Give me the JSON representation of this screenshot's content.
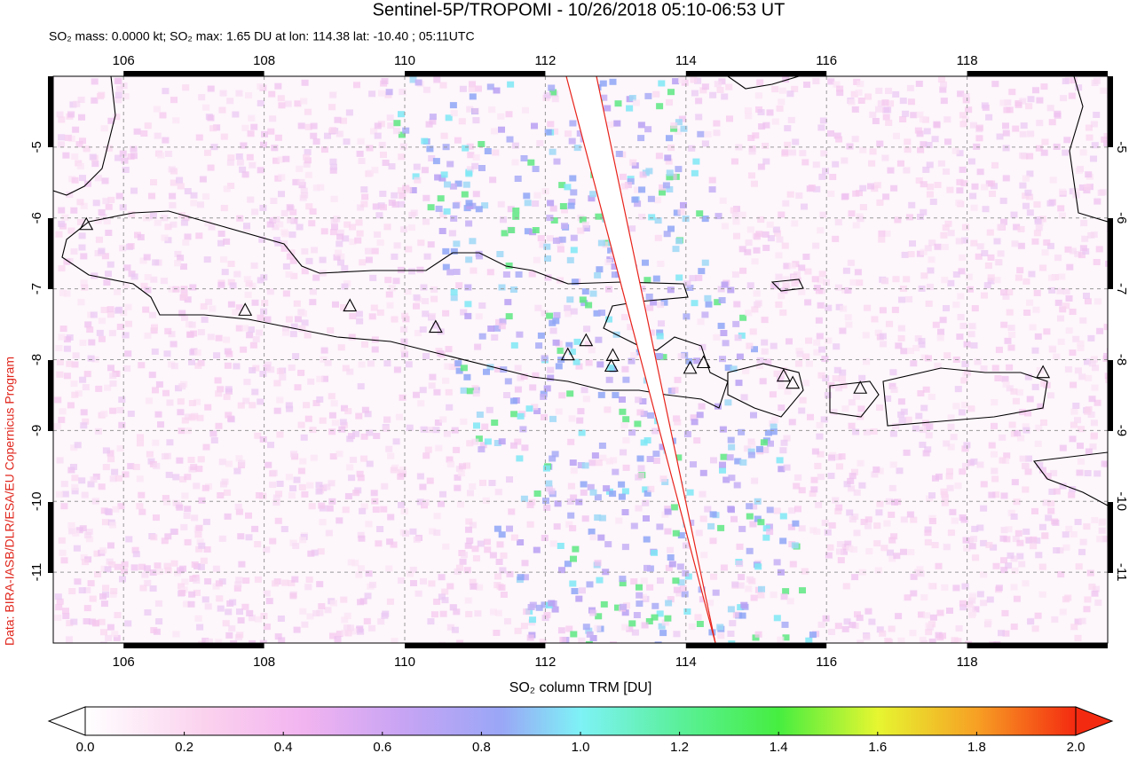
{
  "chart_data": {
    "type": "map",
    "title": "Sentinel-5P/TROPOMI - 10/26/2018 05:10-06:53 UT",
    "subtitle": "SO₂ mass: 0.0000 kt; SO₂ max: 1.65 DU at lon: 114.38 lat: -10.40 ; 05:11UTC",
    "credit": "Data: BIRA-IASB/DLR/ESA/EU Copernicus Program",
    "xlim": [
      105,
      120
    ],
    "ylim": [
      -12,
      -4
    ],
    "xticks": [
      106,
      108,
      110,
      112,
      114,
      116,
      118
    ],
    "yticks": [
      -5,
      -6,
      -7,
      -8,
      -9,
      -10,
      -11
    ],
    "grid": true,
    "volcanoes": {
      "x": [
        105.47,
        107.73,
        109.22,
        110.44,
        112.32,
        112.58,
        112.96,
        112.94,
        114.06,
        114.25,
        115.39,
        115.52,
        116.48,
        119.08
      ],
      "y": [
        -6.1,
        -7.31,
        -7.25,
        -7.55,
        -7.94,
        -7.74,
        -7.95,
        -8.1,
        -8.13,
        -8.05,
        -8.24,
        -8.34,
        -8.41,
        -8.19
      ]
    },
    "colorbar": {
      "label": "SO₂ column TRM [DU]",
      "lim": [
        0,
        2
      ],
      "ticks": [
        {
          "value": 0,
          "label": "0.0"
        },
        {
          "value": 0.2,
          "label": "0.2"
        },
        {
          "value": 0.4,
          "label": "0.4"
        },
        {
          "value": 0.6,
          "label": "0.6"
        },
        {
          "value": 0.8,
          "label": "0.8"
        },
        {
          "value": 1,
          "label": "1.0"
        },
        {
          "value": 1.2,
          "label": "1.2"
        },
        {
          "value": 1.4,
          "label": "1.4"
        },
        {
          "value": 1.6,
          "label": "1.6"
        },
        {
          "value": 1.8,
          "label": "1.8"
        },
        {
          "value": 2,
          "label": "2.0"
        }
      ]
    }
  }
}
